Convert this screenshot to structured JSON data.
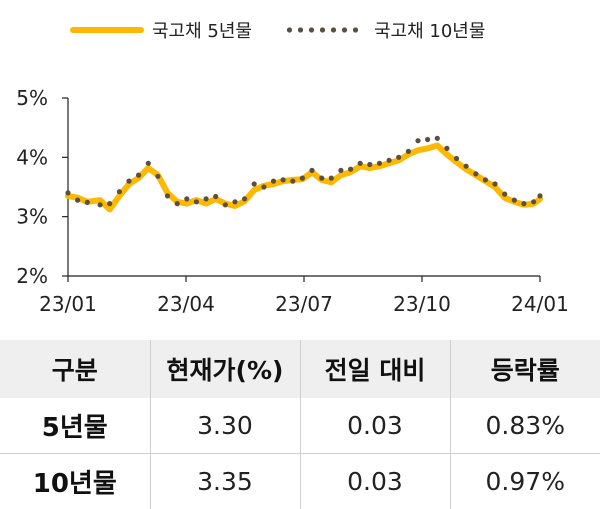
{
  "chart_data": {
    "type": "line",
    "title": "",
    "xlabel": "",
    "ylabel": "",
    "x_ticks": [
      "23/01",
      "23/04",
      "23/07",
      "23/10",
      "24/01"
    ],
    "y_ticks": [
      "5%",
      "4%",
      "3%",
      "2%"
    ],
    "ylim": [
      2,
      5
    ],
    "grid": false,
    "legend": "top",
    "series": [
      {
        "name": "국고채 5년물",
        "color": "#FFB800",
        "style": "solid",
        "points": [
          [
            0,
            3.35
          ],
          [
            3,
            3.32
          ],
          [
            6,
            3.25
          ],
          [
            10,
            3.28
          ],
          [
            13,
            3.12
          ],
          [
            16,
            3.35
          ],
          [
            19,
            3.55
          ],
          [
            22,
            3.65
          ],
          [
            25,
            3.82
          ],
          [
            28,
            3.7
          ],
          [
            31,
            3.4
          ],
          [
            34,
            3.25
          ],
          [
            37,
            3.22
          ],
          [
            40,
            3.28
          ],
          [
            43,
            3.22
          ],
          [
            46,
            3.3
          ],
          [
            49,
            3.22
          ],
          [
            52,
            3.18
          ],
          [
            55,
            3.26
          ],
          [
            58,
            3.45
          ],
          [
            61,
            3.52
          ],
          [
            64,
            3.55
          ],
          [
            67,
            3.6
          ],
          [
            70,
            3.62
          ],
          [
            73,
            3.63
          ],
          [
            76,
            3.75
          ],
          [
            79,
            3.62
          ],
          [
            82,
            3.58
          ],
          [
            85,
            3.7
          ],
          [
            88,
            3.75
          ],
          [
            91,
            3.85
          ],
          [
            94,
            3.82
          ],
          [
            97,
            3.85
          ],
          [
            100,
            3.9
          ],
          [
            103,
            3.95
          ],
          [
            106,
            4.05
          ],
          [
            109,
            4.12
          ],
          [
            112,
            4.15
          ],
          [
            115,
            4.2
          ],
          [
            118,
            4.05
          ],
          [
            121,
            3.92
          ],
          [
            124,
            3.8
          ],
          [
            127,
            3.7
          ],
          [
            130,
            3.6
          ],
          [
            133,
            3.5
          ],
          [
            136,
            3.32
          ],
          [
            139,
            3.25
          ],
          [
            142,
            3.2
          ],
          [
            145,
            3.22
          ],
          [
            147,
            3.3
          ]
        ]
      },
      {
        "name": "국고채 10년물",
        "color": "#5b5040",
        "style": "dotted",
        "points": [
          [
            0,
            3.4
          ],
          [
            3,
            3.28
          ],
          [
            6,
            3.24
          ],
          [
            10,
            3.2
          ],
          [
            13,
            3.22
          ],
          [
            16,
            3.42
          ],
          [
            19,
            3.6
          ],
          [
            22,
            3.7
          ],
          [
            25,
            3.9
          ],
          [
            28,
            3.68
          ],
          [
            31,
            3.35
          ],
          [
            34,
            3.22
          ],
          [
            37,
            3.3
          ],
          [
            40,
            3.25
          ],
          [
            43,
            3.3
          ],
          [
            46,
            3.34
          ],
          [
            49,
            3.2
          ],
          [
            52,
            3.25
          ],
          [
            55,
            3.3
          ],
          [
            58,
            3.55
          ],
          [
            61,
            3.5
          ],
          [
            64,
            3.6
          ],
          [
            67,
            3.62
          ],
          [
            70,
            3.6
          ],
          [
            73,
            3.65
          ],
          [
            76,
            3.78
          ],
          [
            79,
            3.65
          ],
          [
            82,
            3.65
          ],
          [
            85,
            3.78
          ],
          [
            88,
            3.8
          ],
          [
            91,
            3.9
          ],
          [
            94,
            3.88
          ],
          [
            97,
            3.9
          ],
          [
            100,
            3.95
          ],
          [
            103,
            4.0
          ],
          [
            106,
            4.1
          ],
          [
            109,
            4.28
          ],
          [
            112,
            4.3
          ],
          [
            115,
            4.32
          ],
          [
            118,
            4.15
          ],
          [
            121,
            3.98
          ],
          [
            124,
            3.85
          ],
          [
            127,
            3.72
          ],
          [
            130,
            3.62
          ],
          [
            133,
            3.55
          ],
          [
            136,
            3.38
          ],
          [
            139,
            3.28
          ],
          [
            142,
            3.22
          ],
          [
            145,
            3.25
          ],
          [
            147,
            3.35
          ]
        ]
      }
    ]
  },
  "table": {
    "headers": [
      "구분",
      "현재가(%)",
      "전일 대비",
      "등락률"
    ],
    "rows": [
      [
        "5년물",
        "3.30",
        "0.03",
        "0.83%"
      ],
      [
        "10년물",
        "3.35",
        "0.03",
        "0.97%"
      ]
    ]
  }
}
